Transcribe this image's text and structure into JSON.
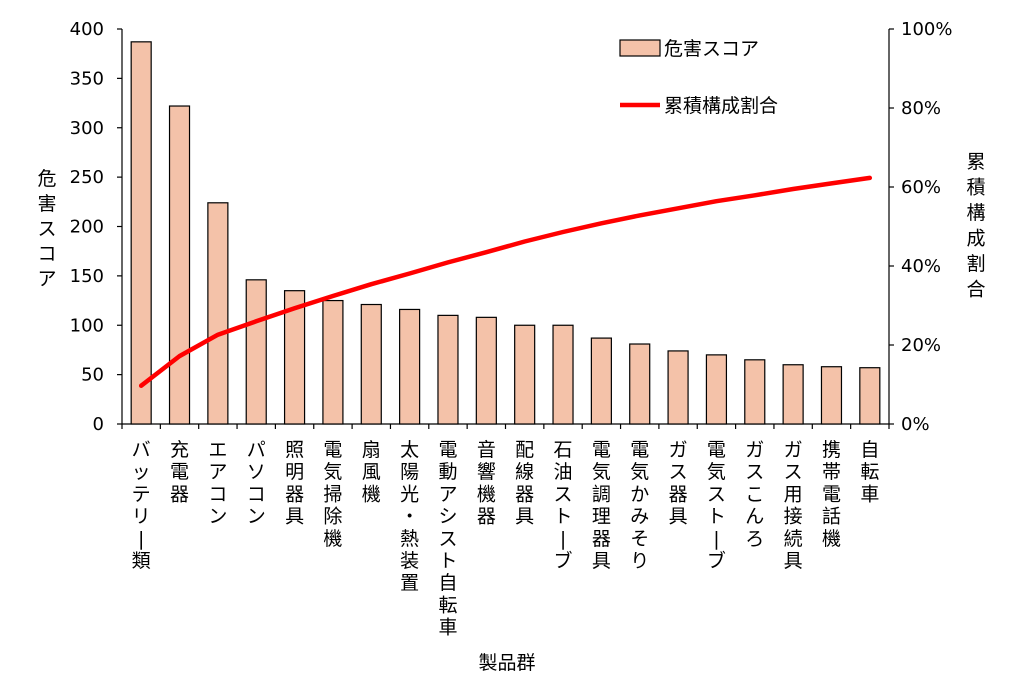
{
  "chart_data": {
    "type": "bar",
    "title": "",
    "xlabel": "製品群",
    "ylabel": "危害スコア",
    "y2label": "累積構成割合",
    "ylim": [
      0,
      400
    ],
    "yticks": [
      "0",
      "50",
      "100",
      "150",
      "200",
      "250",
      "300",
      "350",
      "400"
    ],
    "y2lim": [
      0,
      100
    ],
    "y2ticks": [
      "0%",
      "20%",
      "40%",
      "60%",
      "80%",
      "100%"
    ],
    "grid": false,
    "legend_position": "top-right",
    "categories": [
      "バッテリー類",
      "充電器",
      "エアコン",
      "パソコン",
      "照明器具",
      "電気掃除機",
      "扇風機",
      "太陽光・熱装置",
      "電動アシスト自転車",
      "音響機器",
      "配線器具",
      "石油ストーブ",
      "電気調理器具",
      "電気かみそり",
      "ガス器具",
      "電気ストーブ",
      "ガスこんろ",
      "ガス用接続具",
      "携帯電話機",
      "自転車"
    ],
    "series": [
      {
        "name": "危害スコア",
        "type": "bar",
        "axis": "left",
        "color": "#f4c2a9",
        "values": [
          387,
          322,
          224,
          146,
          135,
          125,
          121,
          116,
          110,
          108,
          100,
          100,
          87,
          81,
          74,
          70,
          65,
          60,
          58,
          57
        ]
      },
      {
        "name": "累積構成割合",
        "type": "line",
        "axis": "right",
        "color": "#ff0000",
        "values": [
          9.7,
          17.2,
          22.6,
          26.0,
          29.3,
          32.4,
          35.4,
          38.1,
          40.9,
          43.5,
          46.2,
          48.6,
          50.8,
          52.8,
          54.6,
          56.4,
          57.9,
          59.5,
          60.9,
          62.3
        ]
      }
    ]
  }
}
